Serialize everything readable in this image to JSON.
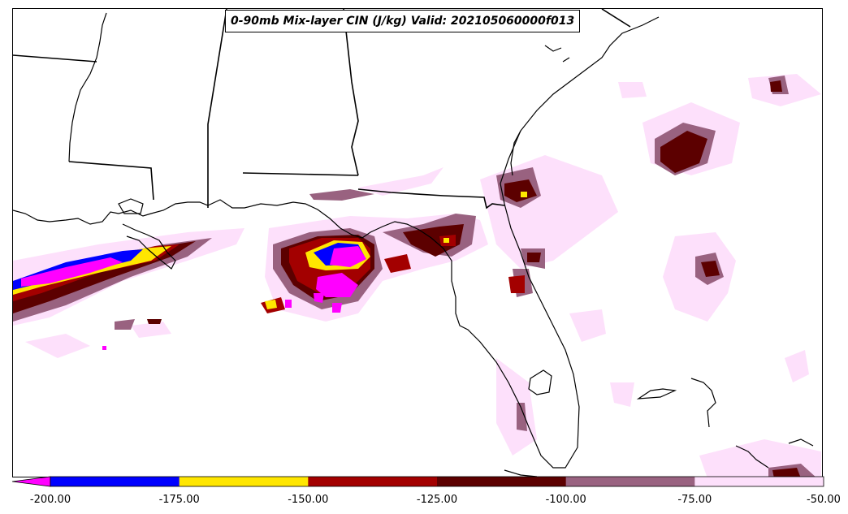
{
  "map": {
    "title": "0-90mb Mix-layer CIN (J/kg) Valid: 202105060000f013",
    "region": "Gulf of Mexico / Florida / southeastern United States",
    "colors": {
      "lt_m200": "#ff00ff",
      "m200_m175": "#0000ff",
      "m175_m150": "#ffe600",
      "m150_m125": "#a30000",
      "m125_m100": "#5c0000",
      "m100_m75": "#996280",
      "m75_m50": "#fde0fb",
      "coastline": "#000000",
      "state_border": "#000000"
    }
  },
  "colorbar": {
    "ticks": [
      "-200.00",
      "-175.00",
      "-150.00",
      "-125.00",
      "-100.00",
      "-75.00",
      "-50.00"
    ],
    "extend": "min",
    "bins": [
      {
        "name": "< -200",
        "color": "#ff00ff"
      },
      {
        "name": "-200 to -175",
        "color": "#0000ff"
      },
      {
        "name": "-175 to -150",
        "color": "#ffe600"
      },
      {
        "name": "-150 to -125",
        "color": "#a30000"
      },
      {
        "name": "-125 to -100",
        "color": "#5c0000"
      },
      {
        "name": "-100 to -75",
        "color": "#996280"
      },
      {
        "name": "-75 to -50",
        "color": "#fde0fb"
      }
    ]
  }
}
